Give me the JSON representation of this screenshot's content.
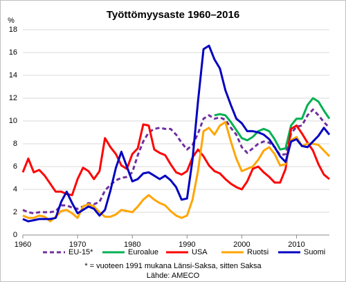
{
  "chart_data": {
    "type": "line",
    "title": "Työttömyysaste 1960–2016",
    "y_label": "%",
    "notes": [
      "* = vuoteen 1991 mukana Länsi-Saksa, sitten Saksa",
      "Lähde: AMECO"
    ],
    "x": [
      1960,
      1961,
      1962,
      1963,
      1964,
      1965,
      1966,
      1967,
      1968,
      1969,
      1970,
      1971,
      1972,
      1973,
      1974,
      1975,
      1976,
      1977,
      1978,
      1979,
      1980,
      1981,
      1982,
      1983,
      1984,
      1985,
      1986,
      1987,
      1988,
      1989,
      1990,
      1991,
      1992,
      1993,
      1994,
      1995,
      1996,
      1997,
      1998,
      1999,
      2000,
      2001,
      2002,
      2003,
      2004,
      2005,
      2006,
      2007,
      2008,
      2009,
      2010,
      2011,
      2012,
      2013,
      2014,
      2015,
      2016
    ],
    "xlim": [
      1960,
      2016
    ],
    "xticks": [
      1960,
      1970,
      1980,
      1990,
      2000,
      2010
    ],
    "ylim": [
      0,
      18
    ],
    "yticks": [
      0,
      2,
      4,
      6,
      8,
      10,
      12,
      14,
      16,
      18
    ],
    "grid": true,
    "series": [
      {
        "name": "EU-15*",
        "color": "#7030a0",
        "dashed": true,
        "values": [
          2.2,
          2.0,
          1.9,
          2.0,
          2.0,
          2.0,
          2.1,
          2.6,
          2.6,
          2.4,
          2.3,
          2.5,
          2.8,
          2.7,
          2.9,
          3.9,
          4.4,
          4.8,
          5.0,
          5.1,
          5.5,
          7.0,
          8.2,
          9.0,
          9.3,
          9.4,
          9.3,
          9.3,
          8.8,
          8.1,
          7.5,
          7.9,
          8.9,
          10.2,
          10.5,
          10.2,
          10.3,
          10.1,
          9.4,
          8.8,
          7.7,
          7.2,
          7.6,
          8.0,
          8.2,
          8.1,
          7.7,
          7.0,
          7.1,
          8.9,
          9.5,
          9.6,
          10.5,
          11.0,
          10.5,
          9.9,
          9.4
        ]
      },
      {
        "name": "Euroalue",
        "color": "#00b050",
        "dashed": false,
        "values": [
          null,
          null,
          null,
          null,
          null,
          null,
          null,
          null,
          null,
          null,
          null,
          null,
          null,
          null,
          null,
          null,
          null,
          null,
          null,
          null,
          null,
          null,
          null,
          null,
          null,
          null,
          null,
          null,
          null,
          null,
          null,
          null,
          null,
          null,
          null,
          10.5,
          10.6,
          10.5,
          9.9,
          9.2,
          8.5,
          8.3,
          8.6,
          9.1,
          9.3,
          9.1,
          8.4,
          7.5,
          7.6,
          9.6,
          10.2,
          10.2,
          11.4,
          12.0,
          11.7,
          10.9,
          10.2
        ]
      },
      {
        "name": "USA",
        "color": "#ff0000",
        "dashed": false,
        "values": [
          5.5,
          6.7,
          5.5,
          5.7,
          5.2,
          4.5,
          3.8,
          3.8,
          3.6,
          3.5,
          4.9,
          5.9,
          5.6,
          4.9,
          5.6,
          8.5,
          7.7,
          7.1,
          6.1,
          5.8,
          7.1,
          7.6,
          9.7,
          9.6,
          7.5,
          7.2,
          7.0,
          6.2,
          5.5,
          5.3,
          5.6,
          6.8,
          7.5,
          6.9,
          6.1,
          5.6,
          5.4,
          4.9,
          4.5,
          4.2,
          4.0,
          4.7,
          5.8,
          6.0,
          5.5,
          5.1,
          4.6,
          4.6,
          5.8,
          9.3,
          9.6,
          8.9,
          8.1,
          7.4,
          6.2,
          5.3,
          4.9
        ]
      },
      {
        "name": "Ruotsi",
        "color": "#ffa500",
        "dashed": false,
        "values": [
          1.7,
          1.5,
          1.5,
          1.7,
          1.6,
          1.2,
          1.6,
          2.1,
          2.2,
          1.9,
          1.5,
          2.5,
          2.7,
          2.5,
          2.0,
          1.6,
          1.6,
          1.8,
          2.2,
          2.1,
          2.0,
          2.5,
          3.1,
          3.5,
          3.1,
          2.8,
          2.6,
          2.1,
          1.7,
          1.5,
          1.7,
          3.1,
          5.6,
          9.1,
          9.4,
          8.8,
          9.6,
          9.9,
          8.2,
          6.7,
          5.6,
          5.8,
          6.0,
          6.6,
          7.4,
          7.7,
          7.1,
          6.1,
          6.2,
          8.3,
          8.6,
          7.8,
          8.0,
          8.0,
          7.9,
          7.4,
          6.9
        ]
      },
      {
        "name": "Suomi",
        "color": "#0000c0",
        "dashed": false,
        "values": [
          1.4,
          1.2,
          1.3,
          1.4,
          1.4,
          1.4,
          1.5,
          2.9,
          3.8,
          2.8,
          1.9,
          2.2,
          2.5,
          2.3,
          1.7,
          2.2,
          3.9,
          5.9,
          7.3,
          6.0,
          4.7,
          4.9,
          5.4,
          5.5,
          5.2,
          4.9,
          5.2,
          4.8,
          4.2,
          3.1,
          3.2,
          6.6,
          11.7,
          16.3,
          16.6,
          15.4,
          14.6,
          12.7,
          11.4,
          10.2,
          9.8,
          9.1,
          9.1,
          9.0,
          8.8,
          8.4,
          7.7,
          6.9,
          6.4,
          8.2,
          8.4,
          7.8,
          7.7,
          8.2,
          8.7,
          9.4,
          8.8
        ]
      }
    ]
  }
}
